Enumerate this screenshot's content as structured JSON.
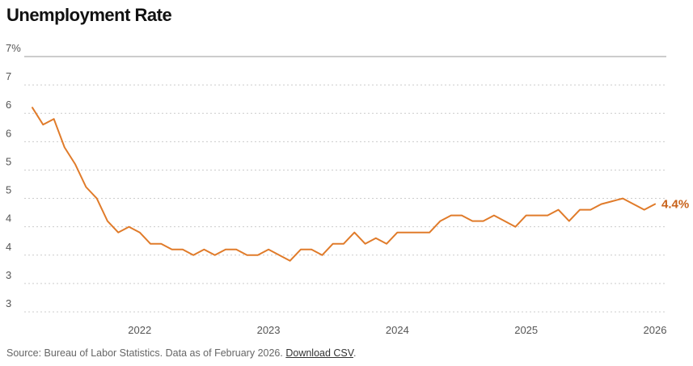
{
  "title": "Unemployment Rate",
  "footer": {
    "source_text": "Source: Bureau of Labor Statistics. Data as of February 2026.",
    "download_label": "Download CSV",
    "trailing": "."
  },
  "colors": {
    "line": "#e07b2a",
    "label": "#c8621a",
    "grid": "#cccccc",
    "axis": "#999999",
    "tick": "#555555"
  },
  "chart_data": {
    "type": "line",
    "title": "Unemployment Rate",
    "xlabel": "",
    "ylabel": "",
    "y_tick_labels": [
      {
        "value": 7.0,
        "label": "7%"
      },
      {
        "value": 6.5,
        "label": "7"
      },
      {
        "value": 6.0,
        "label": "6"
      },
      {
        "value": 5.5,
        "label": "6"
      },
      {
        "value": 5.0,
        "label": "5"
      },
      {
        "value": 4.5,
        "label": "5"
      },
      {
        "value": 4.0,
        "label": "4"
      },
      {
        "value": 3.5,
        "label": "4"
      },
      {
        "value": 3.0,
        "label": "3"
      },
      {
        "value": 2.5,
        "label": "3"
      }
    ],
    "ylim": [
      2.5,
      7.0
    ],
    "x_tick_labels": [
      {
        "value": "2022-01",
        "label": "2022"
      },
      {
        "value": "2023-01",
        "label": "2023"
      },
      {
        "value": "2024-01",
        "label": "2024"
      },
      {
        "value": "2025-01",
        "label": "2025"
      },
      {
        "value": "2026-01",
        "label": "2026"
      }
    ],
    "grid": true,
    "end_label": "4.4%",
    "series": [
      {
        "points": [
          [
            "2021-03",
            6.1
          ],
          [
            "2021-04",
            5.8
          ],
          [
            "2021-05",
            5.9
          ],
          [
            "2021-06",
            5.4
          ],
          [
            "2021-07",
            5.1
          ],
          [
            "2021-08",
            4.7
          ],
          [
            "2021-09",
            4.5
          ],
          [
            "2021-10",
            4.1
          ],
          [
            "2021-11",
            3.9
          ],
          [
            "2021-12",
            4.0
          ],
          [
            "2022-01",
            3.9
          ],
          [
            "2022-02",
            3.7
          ],
          [
            "2022-03",
            3.7
          ],
          [
            "2022-04",
            3.6
          ],
          [
            "2022-05",
            3.6
          ],
          [
            "2022-06",
            3.5
          ],
          [
            "2022-07",
            3.6
          ],
          [
            "2022-08",
            3.5
          ],
          [
            "2022-09",
            3.6
          ],
          [
            "2022-10",
            3.6
          ],
          [
            "2022-11",
            3.5
          ],
          [
            "2022-12",
            3.5
          ],
          [
            "2023-01",
            3.6
          ],
          [
            "2023-02",
            3.5
          ],
          [
            "2023-03",
            3.4
          ],
          [
            "2023-04",
            3.6
          ],
          [
            "2023-05",
            3.6
          ],
          [
            "2023-06",
            3.5
          ],
          [
            "2023-07",
            3.7
          ],
          [
            "2023-08",
            3.7
          ],
          [
            "2023-09",
            3.9
          ],
          [
            "2023-10",
            3.7
          ],
          [
            "2023-11",
            3.8
          ],
          [
            "2023-12",
            3.7
          ],
          [
            "2024-01",
            3.9
          ],
          [
            "2024-02",
            3.9
          ],
          [
            "2024-03",
            3.9
          ],
          [
            "2024-04",
            3.9
          ],
          [
            "2024-05",
            4.1
          ],
          [
            "2024-06",
            4.2
          ],
          [
            "2024-07",
            4.2
          ],
          [
            "2024-08",
            4.1
          ],
          [
            "2024-09",
            4.1
          ],
          [
            "2024-10",
            4.2
          ],
          [
            "2024-11",
            4.1
          ],
          [
            "2024-12",
            4.0
          ],
          [
            "2025-01",
            4.2
          ],
          [
            "2025-02",
            4.2
          ],
          [
            "2025-03",
            4.2
          ],
          [
            "2025-04",
            4.3
          ],
          [
            "2025-05",
            4.1
          ],
          [
            "2025-06",
            4.3
          ],
          [
            "2025-07",
            4.3
          ],
          [
            "2025-08",
            4.4
          ],
          [
            "2025-09",
            4.45
          ],
          [
            "2025-10",
            4.5
          ],
          [
            "2025-11",
            4.4
          ],
          [
            "2025-12",
            4.3
          ],
          [
            "2026-01",
            4.4
          ]
        ]
      }
    ]
  }
}
